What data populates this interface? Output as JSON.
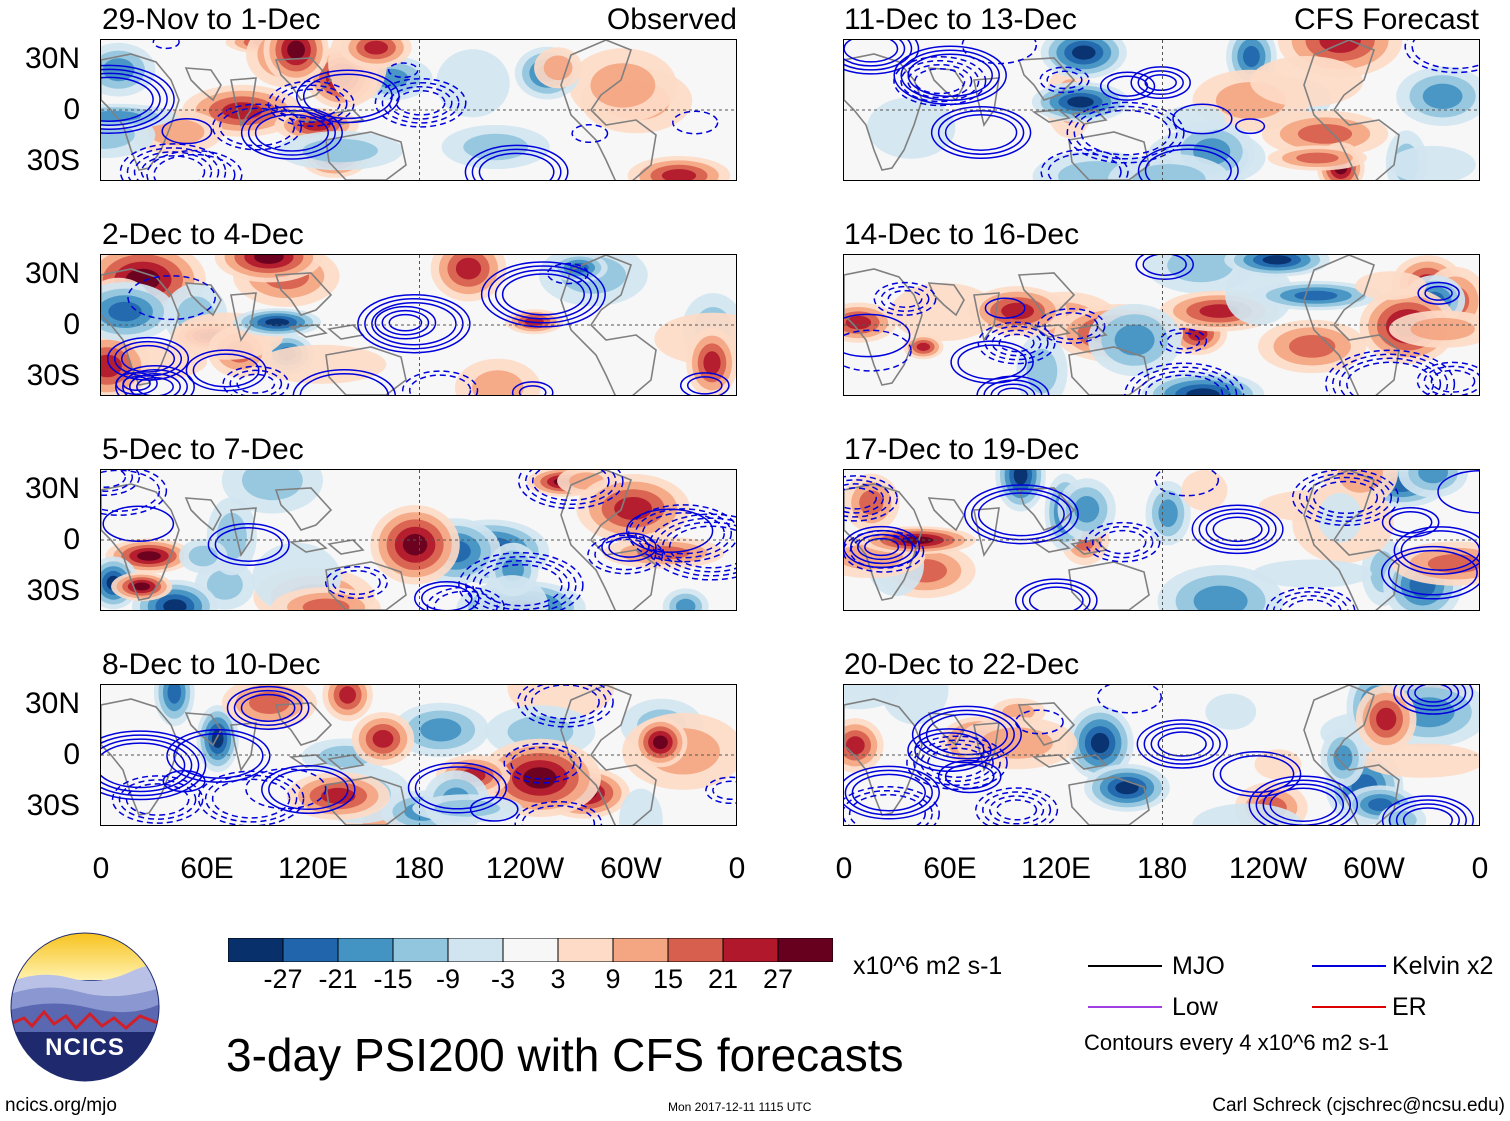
{
  "chart_data": {
    "type": "heatmap",
    "title": "3-day PSI200 with CFS forecasts",
    "left_column_label": "Observed",
    "right_column_label": "CFS Forecast",
    "y_tick_labels": [
      "30N",
      "0",
      "30S"
    ],
    "x_tick_labels": [
      "0",
      "60E",
      "120E",
      "180",
      "120W",
      "60W",
      "0"
    ],
    "panels_left": [
      "29-Nov to 1-Dec",
      "2-Dec to 4-Dec",
      "5-Dec to 7-Dec",
      "8-Dec to 10-Dec"
    ],
    "panels_right": [
      "11-Dec to 13-Dec",
      "14-Dec to 16-Dec",
      "17-Dec to 19-Dec",
      "20-Dec to 22-Dec"
    ],
    "colorbar": {
      "levels": [
        "-27",
        "-21",
        "-15",
        "-9",
        "-3",
        "3",
        "9",
        "15",
        "21",
        "27"
      ],
      "colors": [
        "#08306b",
        "#2166ac",
        "#4393c3",
        "#92c5de",
        "#d1e5f0",
        "#f7f7f7",
        "#fddbc7",
        "#f4a582",
        "#d6604d",
        "#b2182b",
        "#67001f"
      ],
      "units": "x10^6 m2 s-1"
    },
    "legend": [
      {
        "label": "MJO",
        "color": "#000000"
      },
      {
        "label": "Kelvin x2",
        "color": "#0000dd"
      },
      {
        "label": "Low",
        "color": "#a040e0"
      },
      {
        "label": "ER",
        "color": "#dd0000"
      }
    ],
    "contour_note": "Contours every 4 x10^6 m2 s-1"
  },
  "footer": {
    "logo_text": "NCICS",
    "url": "ncics.org/mjo",
    "timestamp": "Mon 2017-12-11 1115 UTC",
    "author": "Carl Schreck (cjschrec@ncsu.edu)"
  }
}
